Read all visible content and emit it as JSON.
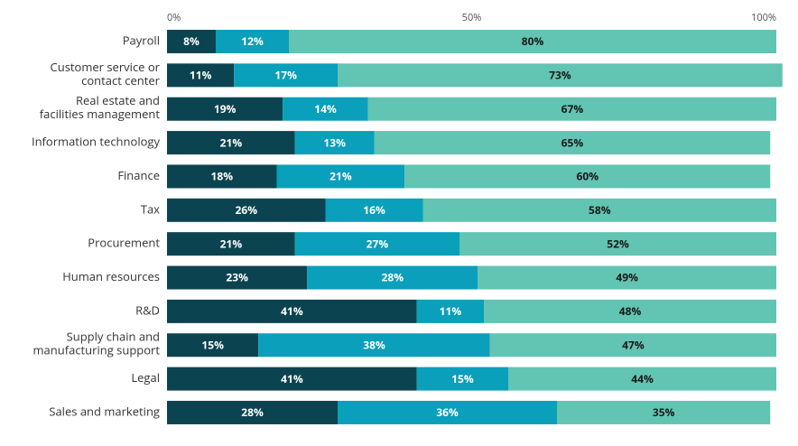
{
  "chart_data": {
    "type": "stacked_bar_horizontal",
    "categories": [
      "Payroll",
      "Customer service or\ncontact center",
      "Real estate and\nfacilities management",
      "Information technology",
      "Finance",
      "Tax",
      "Procurement",
      "Human resources",
      "R&D",
      "Supply chain and\nmanufacturing support",
      "Legal",
      "Sales and marketing"
    ],
    "series": [
      {
        "color": "#0b4450",
        "label_color": "#ffffff",
        "values": [
          8,
          11,
          19,
          21,
          18,
          26,
          21,
          23,
          41,
          15,
          41,
          28
        ],
        "value_labels": [
          "8%",
          "11%",
          "19%",
          "21%",
          "18%",
          "26%",
          "21%",
          "23%",
          "41%",
          "15%",
          "41%",
          "28%"
        ]
      },
      {
        "color": "#0a9fba",
        "label_color": "#ffffff",
        "values": [
          12,
          17,
          14,
          13,
          21,
          16,
          27,
          28,
          11,
          38,
          15,
          36
        ],
        "value_labels": [
          "12%",
          "17%",
          "14%",
          "13%",
          "21%",
          "16%",
          "27%",
          "28%",
          "11%",
          "38%",
          "15%",
          "36%"
        ]
      },
      {
        "color": "#62c4b2",
        "label_color": "#1a1a1a",
        "values": [
          80,
          73,
          67,
          65,
          60,
          58,
          52,
          49,
          48,
          47,
          44,
          35
        ],
        "value_labels": [
          "80%",
          "73%",
          "67%",
          "65%",
          "60%",
          "58%",
          "52%",
          "49%",
          "48%",
          "47%",
          "44%",
          "35%"
        ]
      }
    ],
    "xlim": [
      0,
      100
    ],
    "xticks": [
      {
        "value": 0,
        "label": "0%"
      },
      {
        "value": 50,
        "label": "50%"
      },
      {
        "value": 100,
        "label": "100%"
      }
    ]
  }
}
